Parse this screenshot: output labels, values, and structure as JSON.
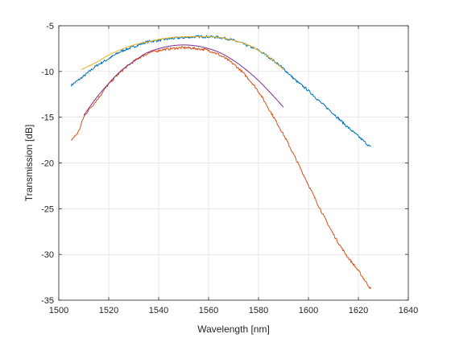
{
  "chart_data": {
    "type": "line",
    "title": "",
    "xlabel": "Wavelength [nm]",
    "ylabel": "Transmission [dB]",
    "xlim": [
      1500,
      1640
    ],
    "ylim": [
      -35,
      -5
    ],
    "xticks": [
      1500,
      1520,
      1540,
      1560,
      1580,
      1600,
      1620,
      1640
    ],
    "yticks": [
      -35,
      -30,
      -25,
      -20,
      -15,
      -10,
      -5
    ],
    "grid": true,
    "legend": "none",
    "series": [
      {
        "color": "#0072BD",
        "style": "noisy",
        "x": [
          1505,
          1510,
          1515,
          1520,
          1525,
          1530,
          1535,
          1540,
          1545,
          1550,
          1555,
          1560,
          1565,
          1570,
          1575,
          1580,
          1585,
          1590,
          1595,
          1600,
          1605,
          1610,
          1615,
          1620,
          1625
        ],
        "y": [
          -11.5,
          -10.5,
          -9.4,
          -8.6,
          -7.8,
          -7.3,
          -6.8,
          -6.6,
          -6.4,
          -6.3,
          -6.2,
          -6.2,
          -6.3,
          -6.6,
          -7.1,
          -7.7,
          -8.6,
          -9.7,
          -11.0,
          -12.1,
          -13.4,
          -14.6,
          -15.9,
          -17.1,
          -18.3
        ]
      },
      {
        "color": "#EDB120",
        "style": "smooth",
        "x": [
          1509,
          1515,
          1520,
          1525,
          1530,
          1535,
          1540,
          1545,
          1550,
          1555,
          1560,
          1565,
          1570,
          1575,
          1580,
          1585,
          1590
        ],
        "y": [
          -9.8,
          -9.0,
          -8.2,
          -7.6,
          -7.1,
          -6.8,
          -6.5,
          -6.3,
          -6.2,
          -6.2,
          -6.2,
          -6.3,
          -6.6,
          -7.0,
          -7.7,
          -8.6,
          -9.8
        ]
      },
      {
        "color": "#D95319",
        "style": "noisy",
        "x": [
          1505,
          1508,
          1510,
          1515,
          1520,
          1525,
          1530,
          1535,
          1540,
          1545,
          1550,
          1555,
          1560,
          1565,
          1570,
          1575,
          1580,
          1585,
          1590,
          1595,
          1600,
          1605,
          1610,
          1615,
          1620,
          1625
        ],
        "y": [
          -17.5,
          -16.5,
          -15.0,
          -13.2,
          -11.4,
          -10.0,
          -8.9,
          -8.1,
          -7.7,
          -7.5,
          -7.4,
          -7.5,
          -7.7,
          -8.3,
          -9.2,
          -10.5,
          -12.2,
          -14.5,
          -16.9,
          -19.6,
          -22.4,
          -25.2,
          -27.8,
          -30.0,
          -31.8,
          -33.8
        ]
      },
      {
        "color": "#7E2F8E",
        "style": "smooth",
        "x": [
          1510,
          1515,
          1520,
          1525,
          1530,
          1535,
          1540,
          1545,
          1550,
          1555,
          1560,
          1565,
          1570,
          1575,
          1580,
          1585,
          1590
        ],
        "y": [
          -14.8,
          -12.9,
          -11.3,
          -9.9,
          -8.9,
          -8.0,
          -7.5,
          -7.2,
          -7.1,
          -7.2,
          -7.5,
          -8.0,
          -8.8,
          -9.8,
          -11.0,
          -12.4,
          -13.9
        ]
      }
    ]
  }
}
